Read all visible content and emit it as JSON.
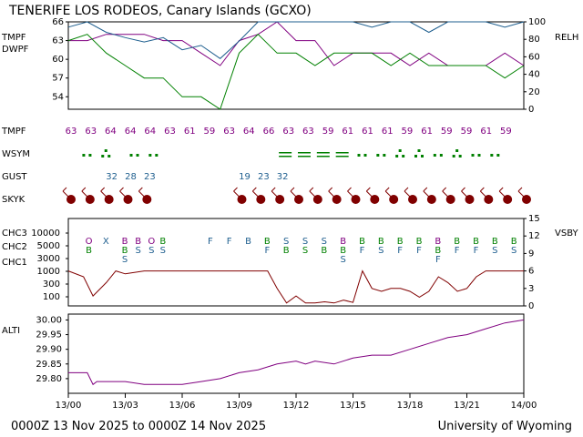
{
  "header": {
    "title": "TENERIFE LOS RODEOS, Canary Islands (GCXO)",
    "footer_left": "0000Z 13 Nov 2025 to 0000Z 14 Nov 2025",
    "footer_right": "University of Wyoming"
  },
  "colors": {
    "tmpf": "#800080",
    "dwpf": "#008000",
    "relh": "#1f5f8f",
    "skyk": "#800000",
    "wsym": "#008000",
    "gust": "#1f5f8f",
    "chc1": "#1f5f8f",
    "chc2": "#008000",
    "chc3": "#800080",
    "vsby": "#800000",
    "alti": "#800080",
    "axis": "#000000"
  },
  "labels": {
    "tmpf": "TMPF",
    "dwpf": "DWPF",
    "relh": "RELH",
    "tmpf_row": "TMPF",
    "wsym": "WSYM",
    "gust": "GUST",
    "skyk": "SKYK",
    "chc3": "CHC3",
    "chc2": "CHC2",
    "chc1": "CHC1",
    "vsby": "VSBY",
    "alti": "ALTI"
  },
  "x_ticks": [
    "13/00",
    "13/03",
    "13/06",
    "13/09",
    "13/12",
    "13/15",
    "13/18",
    "13/21",
    "14/00"
  ],
  "chart_data": [
    {
      "type": "line",
      "panel": "temperature",
      "x_unit": "hours from 13/00",
      "ylim_left": [
        52,
        66
      ],
      "yticks_left": [
        "66",
        "63",
        "60",
        "57",
        "54"
      ],
      "ylim_right": [
        0,
        100
      ],
      "yticks_right": [
        "100",
        "80",
        "60",
        "40",
        "20",
        "0"
      ],
      "series": [
        {
          "name": "TMPF",
          "axis": "left",
          "x": [
            0,
            1,
            2,
            3,
            4,
            5,
            6,
            7,
            8,
            9,
            10,
            11,
            12,
            13,
            14,
            15,
            16,
            17,
            18,
            19,
            20,
            21,
            22,
            23,
            24
          ],
          "values": [
            63,
            63,
            64,
            64,
            64,
            63,
            63,
            61,
            59,
            63,
            64,
            66,
            63,
            63,
            59,
            61,
            61,
            61,
            59,
            61,
            59,
            59,
            59,
            61,
            59
          ]
        },
        {
          "name": "DWPF",
          "axis": "left",
          "x": [
            0,
            1,
            2,
            3,
            4,
            5,
            6,
            7,
            8,
            9,
            10,
            11,
            12,
            13,
            14,
            15,
            16,
            17,
            18,
            19,
            20,
            21,
            22,
            23,
            24
          ],
          "values": [
            63,
            64,
            61,
            59,
            57,
            57,
            54,
            54,
            52,
            61,
            64,
            61,
            61,
            59,
            61,
            61,
            61,
            59,
            61,
            59,
            59,
            59,
            59,
            57,
            59
          ]
        },
        {
          "name": "RELH",
          "axis": "right",
          "x": [
            0,
            1,
            2,
            3,
            4,
            5,
            6,
            7,
            8,
            9,
            10,
            11,
            12,
            13,
            14,
            15,
            16,
            17,
            18,
            19,
            20,
            21,
            22,
            23,
            24
          ],
          "values": [
            94,
            100,
            88,
            82,
            77,
            82,
            68,
            73,
            58,
            78,
            100,
            100,
            100,
            100,
            100,
            100,
            94,
            100,
            100,
            88,
            100,
            100,
            100,
            94,
            100
          ]
        }
      ]
    },
    {
      "type": "table",
      "panel": "station-rows",
      "tmpf_row": [
        "63",
        "63",
        "64",
        "64",
        "64",
        "63",
        "61",
        "59",
        "63",
        "64",
        "66",
        "63",
        "63",
        "59",
        "61",
        "61",
        "61",
        "59",
        "61",
        "59",
        "59",
        "61",
        "59"
      ],
      "gust_row": [
        {
          "x": 2,
          "value": "32"
        },
        {
          "x": 3,
          "value": "28"
        },
        {
          "x": 4,
          "value": "23"
        },
        {
          "x": 9,
          "value": "19"
        },
        {
          "x": 10,
          "value": "23"
        },
        {
          "x": 11,
          "value": "32"
        }
      ],
      "wsym_row": [
        {
          "x": 0.5,
          "sym": "light-rain"
        },
        {
          "x": 1.5,
          "sym": "moderate-rain"
        },
        {
          "x": 3,
          "sym": "light-rain"
        },
        {
          "x": 4,
          "sym": "light-rain"
        },
        {
          "x": 11,
          "sym": "fog"
        },
        {
          "x": 12,
          "sym": "fog"
        },
        {
          "x": 13,
          "sym": "fog"
        },
        {
          "x": 14,
          "sym": "fog"
        },
        {
          "x": 15,
          "sym": "light-rain"
        },
        {
          "x": 16,
          "sym": "light-rain"
        },
        {
          "x": 17,
          "sym": "moderate-rain"
        },
        {
          "x": 18,
          "sym": "moderate-rain"
        },
        {
          "x": 19,
          "sym": "light-rain"
        },
        {
          "x": 20,
          "sym": "moderate-rain"
        },
        {
          "x": 21,
          "sym": "light-rain"
        },
        {
          "x": 22,
          "sym": "light-rain"
        }
      ],
      "skyk_hours": [
        0,
        1,
        2,
        3,
        4,
        9,
        10,
        11,
        12,
        13,
        14,
        15,
        16,
        17,
        18,
        19,
        20,
        21,
        22,
        23,
        24
      ]
    },
    {
      "type": "line",
      "panel": "ceiling-visibility",
      "ylim_left_labels": [
        "10000",
        "5000",
        "3000",
        "1000",
        "300",
        "100"
      ],
      "ylim_right": [
        0,
        15
      ],
      "yticks_right": [
        "15",
        "12",
        "9",
        "6",
        "3",
        "0"
      ],
      "series": [
        {
          "name": "VSBY",
          "axis": "right",
          "x": [
            0,
            0.8,
            1.3,
            2,
            2.5,
            3,
            4,
            6,
            8,
            10,
            10.5,
            11,
            11.5,
            12,
            12.5,
            13,
            13.5,
            14,
            14.5,
            15,
            15.5,
            16,
            16.5,
            17,
            17.5,
            18,
            18.5,
            19,
            19.5,
            20,
            20.5,
            21,
            21.5,
            22,
            23,
            24
          ],
          "values": [
            6,
            5,
            1.7,
            4,
            6,
            5.5,
            6,
            6,
            6,
            6,
            6,
            3,
            0.5,
            1.7,
            0.5,
            0.5,
            0.7,
            0.5,
            1,
            0.6,
            6,
            3,
            2.5,
            3,
            3,
            2.5,
            1.5,
            2.5,
            5,
            4,
            2.5,
            3,
            5,
            6,
            6,
            6
          ]
        }
      ],
      "cloud_markers": [
        {
          "x": 0.6,
          "chars": [
            "O",
            "B"
          ],
          "colors": [
            "chc3",
            "chc2"
          ]
        },
        {
          "x": 1.5,
          "chars": [
            "X"
          ],
          "colors": [
            "chc1"
          ]
        },
        {
          "x": 2.5,
          "chars": [
            "B",
            "B",
            "S"
          ],
          "colors": [
            "chc3",
            "chc2",
            "chc1"
          ]
        },
        {
          "x": 3.2,
          "chars": [
            "B",
            "S"
          ],
          "colors": [
            "chc3",
            "chc1"
          ]
        },
        {
          "x": 3.9,
          "chars": [
            "O",
            "S"
          ],
          "colors": [
            "chc3",
            "chc1"
          ]
        },
        {
          "x": 4.5,
          "chars": [
            "B",
            "S"
          ],
          "colors": [
            "chc2",
            "chc1"
          ]
        },
        {
          "x": 7,
          "chars": [
            "F"
          ],
          "colors": [
            "chc1"
          ]
        },
        {
          "x": 8,
          "chars": [
            "F"
          ],
          "colors": [
            "chc1"
          ]
        },
        {
          "x": 9,
          "chars": [
            "B"
          ],
          "colors": [
            "chc1"
          ]
        },
        {
          "x": 10,
          "chars": [
            "B",
            "F"
          ],
          "colors": [
            "chc2",
            "chc1"
          ]
        },
        {
          "x": 11,
          "chars": [
            "S",
            "B"
          ],
          "colors": [
            "chc1",
            "chc2"
          ]
        },
        {
          "x": 12,
          "chars": [
            "S",
            "S"
          ],
          "colors": [
            "chc1",
            "chc2"
          ]
        },
        {
          "x": 13,
          "chars": [
            "S",
            "B"
          ],
          "colors": [
            "chc1",
            "chc2"
          ]
        },
        {
          "x": 14,
          "chars": [
            "B",
            "B",
            "S"
          ],
          "colors": [
            "chc3",
            "chc2",
            "chc1"
          ]
        },
        {
          "x": 15,
          "chars": [
            "B",
            "F"
          ],
          "colors": [
            "chc2",
            "chc1"
          ]
        },
        {
          "x": 16,
          "chars": [
            "B",
            "S"
          ],
          "colors": [
            "chc2",
            "chc1"
          ]
        },
        {
          "x": 17,
          "chars": [
            "B",
            "F"
          ],
          "colors": [
            "chc2",
            "chc1"
          ]
        },
        {
          "x": 18,
          "chars": [
            "B",
            "F"
          ],
          "colors": [
            "chc2",
            "chc1"
          ]
        },
        {
          "x": 19,
          "chars": [
            "B",
            "B",
            "F"
          ],
          "colors": [
            "chc3",
            "chc2",
            "chc1"
          ]
        },
        {
          "x": 20,
          "chars": [
            "B",
            "F"
          ],
          "colors": [
            "chc2",
            "chc1"
          ]
        },
        {
          "x": 21,
          "chars": [
            "B",
            "F"
          ],
          "colors": [
            "chc2",
            "chc1"
          ]
        },
        {
          "x": 22,
          "chars": [
            "B",
            "S"
          ],
          "colors": [
            "chc2",
            "chc1"
          ]
        },
        {
          "x": 23,
          "chars": [
            "B",
            "S"
          ],
          "colors": [
            "chc2",
            "chc1"
          ]
        }
      ]
    },
    {
      "type": "line",
      "panel": "altimeter",
      "ylim": [
        29.75,
        30.02
      ],
      "yticks": [
        "30.00",
        "29.95",
        "29.90",
        "29.85",
        "29.80"
      ],
      "series": [
        {
          "name": "ALTI",
          "x": [
            0,
            1,
            1.3,
            1.5,
            2,
            3,
            4,
            5,
            6,
            7,
            8,
            9,
            10,
            11,
            12,
            12.5,
            13,
            14,
            15,
            16,
            17,
            18,
            19,
            20,
            21,
            22,
            23,
            24
          ],
          "values": [
            29.82,
            29.82,
            29.78,
            29.79,
            29.79,
            29.79,
            29.78,
            29.78,
            29.78,
            29.79,
            29.8,
            29.82,
            29.83,
            29.85,
            29.86,
            29.85,
            29.86,
            29.85,
            29.87,
            29.88,
            29.88,
            29.9,
            29.92,
            29.94,
            29.95,
            29.97,
            29.99,
            30.0
          ]
        }
      ]
    }
  ]
}
